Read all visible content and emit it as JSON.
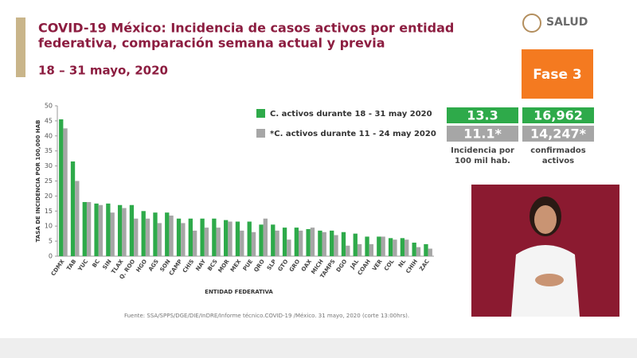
{
  "header": {
    "title_line1": "COVID-19 México: Incidencia de casos activos por entidad",
    "title_line2": "federativa, comparación semana actual y previa",
    "date": "18 – 31 mayo, 2020",
    "logo": "SALUD",
    "phase": "Fase 3"
  },
  "stats": {
    "incidence_current": "13.3",
    "active_current": "16,962",
    "incidence_previous": "11.1*",
    "active_previous": "14,247*",
    "incidence_label_line1": "Incidencia por",
    "incidence_label_line2": "100 mil hab.",
    "active_label_line1": "confirmados",
    "active_label_line2": "activos"
  },
  "source": "Fuente: SSA/SPPS/DGE/DIE/InDRE/Informe técnico.COVID-19 /México. 31 mayo, 2020 (corte 13:00hrs).",
  "chart_data": {
    "type": "bar",
    "y_label": "TASA DE INCIDENCIA POR 100,000 HAB",
    "x_label": "ENTIDAD FEDERATIVA",
    "categories": [
      "CDMX",
      "TAB",
      "YUC",
      "BC",
      "SIN",
      "TLAX",
      "Q. ROO",
      "HGO",
      "AGS",
      "SON",
      "CAMP",
      "CHIS",
      "NAY",
      "BCS",
      "MOR",
      "MEX",
      "PUE",
      "QRO",
      "SLP",
      "GTO",
      "GRO",
      "OAX",
      "MICH",
      "TAMPS",
      "DGO",
      "JAL",
      "COAH",
      "VER",
      "COL",
      "NL",
      "CHIH",
      "ZAC"
    ],
    "series": [
      {
        "name": "C. activos durante 18 - 31 may 2020",
        "color": "#2eaa4a",
        "values": [
          45.5,
          31.5,
          18,
          17.5,
          17.5,
          17,
          17,
          15,
          14.5,
          14.5,
          12.5,
          12.5,
          12.5,
          12.5,
          12,
          11.5,
          11.5,
          10.5,
          10.5,
          9.5,
          9.5,
          9,
          8.5,
          8.5,
          8,
          7.5,
          6.5,
          6.5,
          6,
          6,
          4.5,
          4
        ]
      },
      {
        "name": "*C. activos durante  11 - 24 may 2020",
        "color": "#a6a6a6",
        "values": [
          42.5,
          25,
          18,
          17,
          14.5,
          16,
          12.5,
          12.5,
          11,
          13.5,
          11,
          8.5,
          9.5,
          9.5,
          11.5,
          8.5,
          8,
          12.5,
          8.5,
          5.5,
          8.5,
          9.5,
          8,
          7,
          3.5,
          4,
          4,
          6.5,
          5.5,
          5.5,
          3,
          2.5
        ]
      }
    ],
    "ylim": [
      0,
      50
    ],
    "yticks": [
      0,
      5,
      10,
      15,
      20,
      25,
      30,
      35,
      40,
      45,
      50
    ]
  }
}
